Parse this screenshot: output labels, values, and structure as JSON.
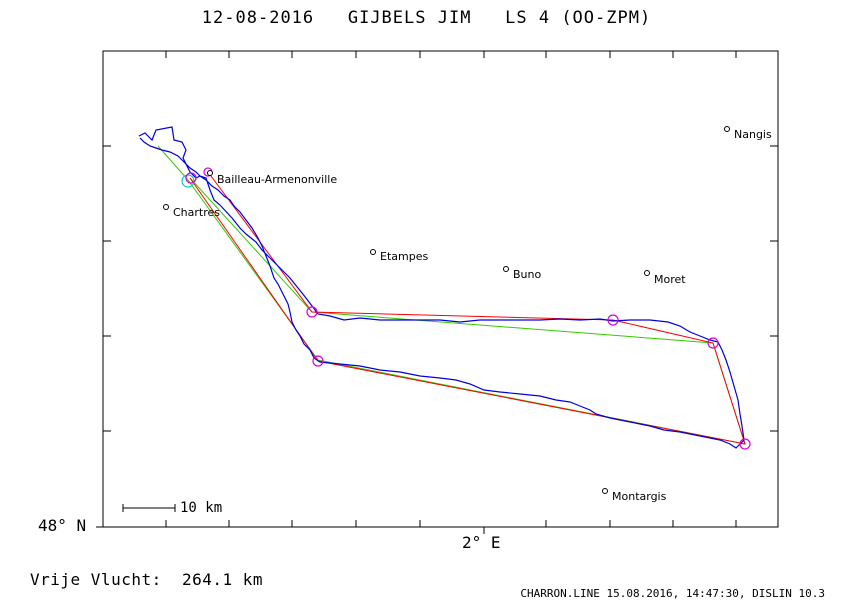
{
  "header": {
    "title": "12-08-2016   GIJBELS JIM   LS 4 (OO-ZPM)"
  },
  "axes": {
    "lat_label": "48° N",
    "lon_label": "2° E"
  },
  "scale": {
    "label": "10 km"
  },
  "cities": [
    {
      "name": "Nangis"
    },
    {
      "name": "Bailleau-Armenonville"
    },
    {
      "name": "Chartres"
    },
    {
      "name": "Etampes"
    },
    {
      "name": "Buno"
    },
    {
      "name": "Moret"
    },
    {
      "name": "Montargis"
    }
  ],
  "footer": {
    "distance": "Vrije Vlucht:  264.1 km",
    "credits": "CHARRON.LINE 15.08.2016, 14:47:30, DISLIN 10.3"
  },
  "colors": {
    "track": "#0000dd",
    "task_red": "#ff0000",
    "task_green": "#33cc00",
    "turnpoint": "#dd00dd",
    "start": "#00cccc"
  }
}
